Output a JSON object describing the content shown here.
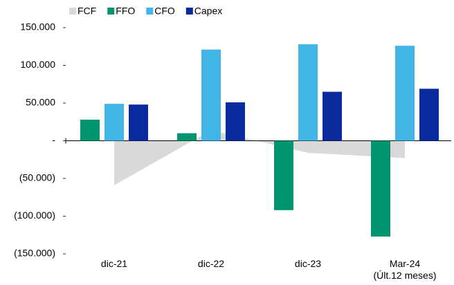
{
  "chart_data": {
    "type": "bar",
    "categories": [
      "dic-21",
      "dic-22",
      "dic-23",
      "Mar-24\n(Últ.12 meses)"
    ],
    "series": [
      {
        "name": "FCF",
        "color": "#d9d9d9",
        "type": "area",
        "values": [
          -59000,
          14000,
          -16000,
          -23000
        ]
      },
      {
        "name": "FFO",
        "color": "#00956f",
        "values": [
          28000,
          10000,
          -92000,
          -127000
        ]
      },
      {
        "name": "CFO",
        "color": "#41b6e6",
        "values": [
          49000,
          121000,
          128000,
          126000
        ]
      },
      {
        "name": "Capex",
        "color": "#0a2b9e",
        "values": [
          48000,
          51000,
          65000,
          69000
        ]
      }
    ],
    "ylim": [
      -150000,
      150000
    ],
    "yticks": [
      {
        "value": -150000,
        "label": "(150.000)"
      },
      {
        "value": -100000,
        "label": "(100.000)"
      },
      {
        "value": -50000,
        "label": "(50.000)"
      },
      {
        "value": 0,
        "label": "-"
      },
      {
        "value": 50000,
        "label": "50.000"
      },
      {
        "value": 100000,
        "label": "100.000"
      },
      {
        "value": 150000,
        "label": "150.000"
      }
    ],
    "legend": "top"
  }
}
